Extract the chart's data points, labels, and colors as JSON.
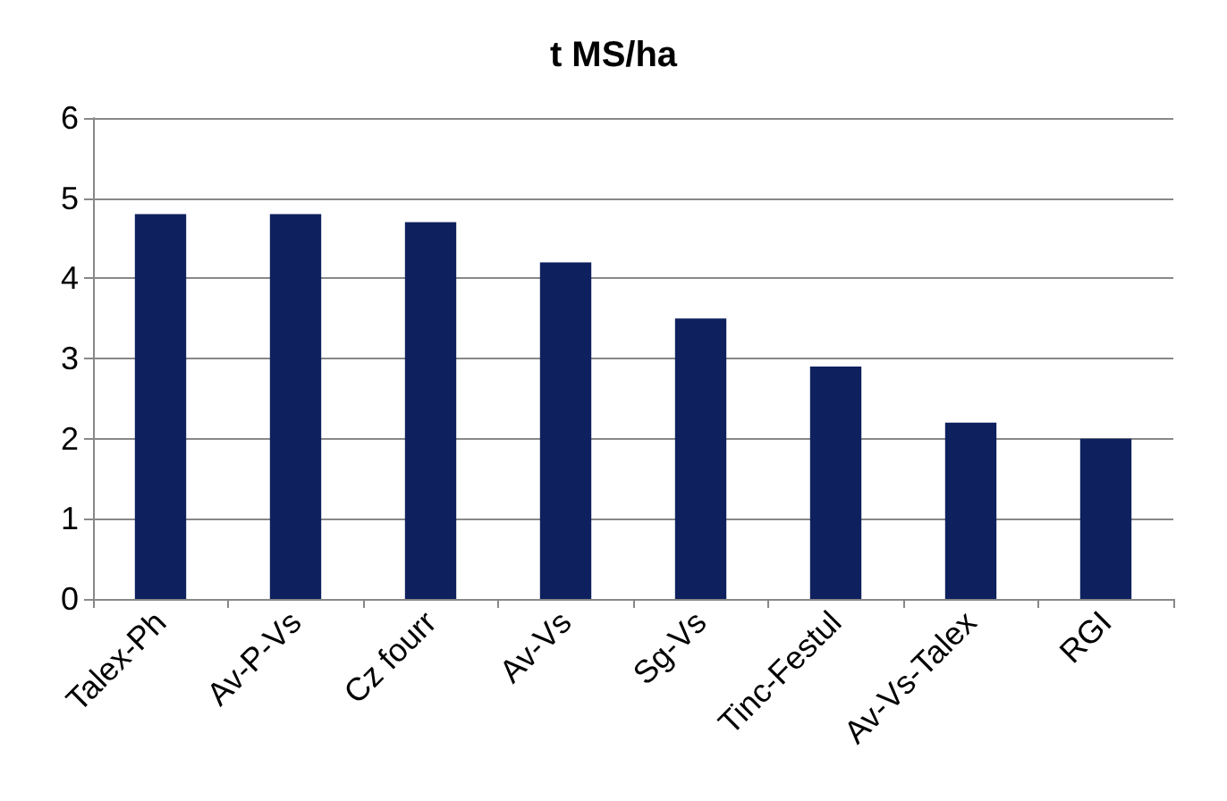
{
  "chart_data": {
    "type": "bar",
    "title": "t MS/ha",
    "categories": [
      "Talex-Ph",
      "Av-P-Vs",
      "Cz fourr",
      "Av-Vs",
      "Sg-Vs",
      "Tinc-Festul",
      "Av-Vs-Talex",
      "RGI"
    ],
    "values": [
      4.8,
      4.8,
      4.7,
      4.2,
      3.5,
      2.9,
      2.2,
      2.0
    ],
    "color": "#0e215e",
    "ylim": [
      0,
      6
    ],
    "yticks": [
      0,
      1,
      2,
      3,
      4,
      5,
      6
    ],
    "grid": "y"
  }
}
